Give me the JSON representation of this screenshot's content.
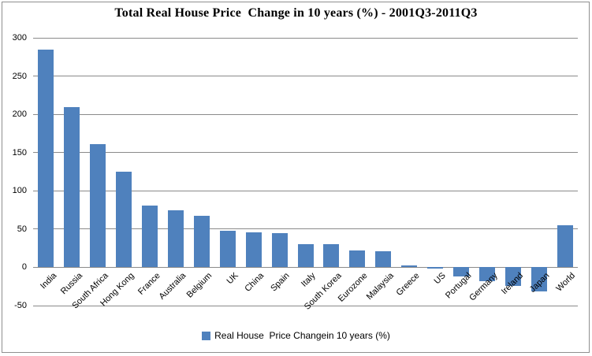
{
  "colors": {
    "bar": "#4F81BD",
    "gridline": "#8A8A8A",
    "frame_border": "#8F8F8F",
    "text": "#000000"
  },
  "legend": {
    "swatch_icon": "blue-square-icon",
    "label": "Real House  Price Changein 10 years (%)"
  },
  "chart_data": {
    "type": "bar",
    "title": "Total Real House Price  Change in 10 years (%) - 2001Q3-2011Q3",
    "categories": [
      "India",
      "Russia",
      "South Africa",
      "Hong Kong",
      "France",
      "Australia",
      "Belgium",
      "UK",
      "China",
      "Spain",
      "Italy",
      "South Korea",
      "Eurozone",
      "Malaysia",
      "Greece",
      "US",
      "Portugal",
      "Germany",
      "Ireland",
      "Japan",
      "World"
    ],
    "series": [
      {
        "name": "Real House  Price Changein 10 years (%)",
        "values": [
          285,
          209,
          161,
          125,
          81,
          75,
          67,
          48,
          46,
          45,
          30,
          30,
          22,
          21,
          3,
          -2,
          -12,
          -18,
          -24,
          -31,
          55
        ]
      }
    ],
    "xlabel": "",
    "ylabel": "",
    "ylim": [
      -50,
      300
    ],
    "ytick_step": 50,
    "yticks": [
      300,
      250,
      200,
      150,
      100,
      50,
      0,
      -50
    ],
    "grid": true,
    "legend_position": "bottom",
    "bar_color": "#4F81BD"
  }
}
